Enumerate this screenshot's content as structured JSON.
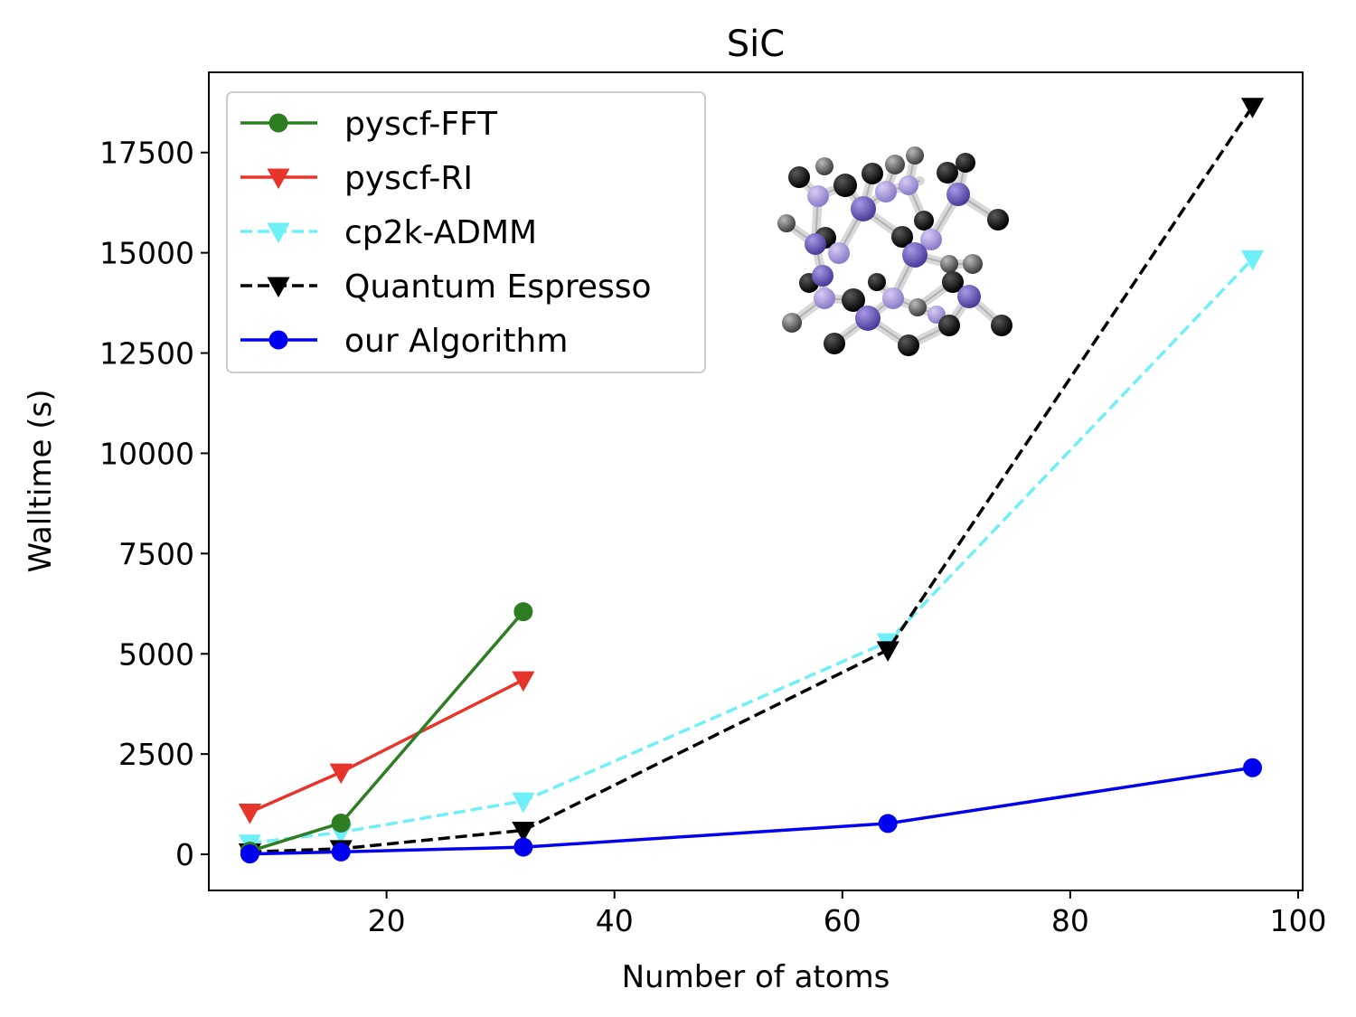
{
  "chart_data": {
    "type": "line",
    "title": "SiC",
    "xlabel": "Number of atoms",
    "ylabel": "Walltime (s)",
    "xlim": [
      4.4,
      100.4
    ],
    "ylim": [
      -900,
      19500
    ],
    "xticks": [
      20,
      40,
      60,
      80,
      100
    ],
    "yticks": [
      0,
      2500,
      5000,
      7500,
      10000,
      12500,
      15000,
      17500
    ],
    "legend_position": "upper-left",
    "inset_image": "SiC crystal structure",
    "series": [
      {
        "name": "pyscf-FFT",
        "color": "#2f7d23",
        "marker": "circle",
        "dashed": false,
        "x": [
          8,
          16,
          32
        ],
        "y": [
          80,
          780,
          6050
        ]
      },
      {
        "name": "pyscf-RI",
        "color": "#e8352b",
        "marker": "triangle-down",
        "dashed": false,
        "x": [
          8,
          16,
          32
        ],
        "y": [
          1050,
          2050,
          4350
        ]
      },
      {
        "name": "cp2k-ADMM",
        "color": "#6ff0f8",
        "marker": "triangle-down",
        "dashed": true,
        "x": [
          8,
          16,
          32,
          64,
          96
        ],
        "y": [
          280,
          550,
          1330,
          5300,
          14850
        ]
      },
      {
        "name": "Quantum Espresso",
        "color": "#000000",
        "marker": "triangle-down",
        "dashed": true,
        "x": [
          8,
          16,
          32,
          64,
          96
        ],
        "y": [
          60,
          140,
          600,
          5100,
          18650
        ]
      },
      {
        "name": "our Algorithm",
        "color": "#0000ee",
        "marker": "circle",
        "dashed": false,
        "x": [
          8,
          16,
          32,
          64,
          96
        ],
        "y": [
          10,
          60,
          180,
          770,
          2160
        ]
      }
    ]
  }
}
